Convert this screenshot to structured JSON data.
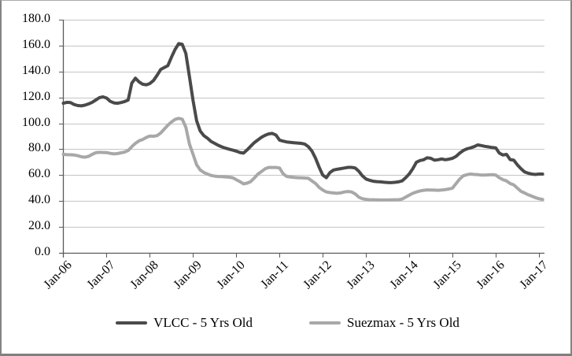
{
  "chart_data": {
    "type": "line",
    "title": "",
    "grid": "horizontal",
    "legend_position": "bottom",
    "frequency": "monthly",
    "x_range": "Jan-06 to Feb-17",
    "x_axis": {
      "tick_labels": [
        "Jan-06",
        "Jan-07",
        "Jan-08",
        "Jan-09",
        "Jan-10",
        "Jan-11",
        "Jan-12",
        "Jan-13",
        "Jan-14",
        "Jan-15",
        "Jan-16",
        "Jan-17"
      ]
    },
    "y_axis": {
      "min": 0,
      "max": 180,
      "tick_values": [
        0,
        20,
        40,
        60,
        80,
        100,
        120,
        140,
        160,
        180
      ],
      "tick_labels": [
        "0.0",
        "20.0",
        "40.0",
        "60.0",
        "80.0",
        "100.0",
        "120.0",
        "140.0",
        "160.0",
        "180.0"
      ]
    },
    "colors": {
      "vlcc_line": "#4a4a4a",
      "suezmax_line": "#a8a8a8",
      "gridline": "#c4c4c4",
      "axis": "#595959"
    },
    "series": [
      {
        "name": "VLCC - 5 Yrs Old",
        "color": "#4a4a4a",
        "values": [
          115.5,
          116.2,
          116.0,
          114.5,
          113.7,
          113.5,
          114.0,
          115.0,
          116.2,
          118.0,
          119.8,
          120.4,
          119.5,
          117.0,
          115.8,
          115.5,
          116.0,
          116.8,
          118.0,
          131.0,
          134.8,
          132.0,
          130.2,
          129.7,
          130.7,
          133.0,
          137.0,
          141.5,
          143.0,
          144.5,
          151.0,
          157.0,
          161.5,
          161.0,
          154.0,
          136.0,
          117.5,
          102.0,
          94.0,
          90.5,
          88.5,
          86.0,
          84.5,
          83.0,
          81.8,
          80.8,
          80.0,
          79.3,
          78.5,
          77.5,
          77.0,
          79.5,
          82.3,
          85.1,
          87.2,
          89.2,
          90.8,
          91.8,
          92.2,
          91.0,
          87.0,
          86.2,
          85.6,
          85.3,
          85.0,
          84.8,
          84.5,
          84.0,
          82.0,
          78.5,
          73.0,
          66.0,
          60.0,
          58.0,
          62.0,
          64.0,
          64.5,
          65.0,
          65.5,
          66.0,
          66.0,
          65.5,
          63.0,
          59.5,
          57.0,
          56.0,
          55.3,
          55.0,
          54.8,
          54.5,
          54.3,
          54.2,
          54.4,
          54.8,
          55.5,
          58.0,
          61.0,
          65.0,
          70.0,
          71.3,
          71.9,
          73.4,
          73.0,
          71.5,
          71.9,
          72.5,
          71.9,
          72.3,
          73.0,
          74.5,
          77.0,
          79.0,
          80.3,
          81.0,
          82.0,
          83.3,
          82.8,
          82.2,
          81.8,
          81.3,
          81.0,
          77.0,
          75.5,
          76.0,
          72.0,
          71.5,
          68.0,
          65.0,
          62.5,
          61.5,
          60.8,
          60.5,
          60.8,
          60.8
        ]
      },
      {
        "name": "Suezmax - 5 Yrs Old",
        "color": "#a8a8a8",
        "values": [
          76.0,
          75.8,
          75.7,
          75.5,
          75.0,
          74.2,
          73.8,
          74.5,
          76.0,
          77.3,
          77.6,
          77.5,
          77.4,
          76.8,
          76.4,
          76.6,
          77.2,
          77.8,
          79.0,
          82.0,
          84.5,
          86.5,
          87.5,
          89.0,
          90.2,
          90.0,
          90.5,
          92.5,
          95.5,
          98.5,
          101.0,
          103.0,
          103.8,
          103.2,
          97.0,
          84.0,
          76.0,
          68.0,
          64.0,
          62.0,
          60.8,
          59.8,
          59.2,
          58.9,
          58.8,
          58.6,
          58.4,
          58.0,
          56.5,
          55.0,
          53.3,
          53.8,
          55.0,
          57.8,
          60.8,
          62.8,
          64.9,
          65.9,
          65.9,
          65.9,
          65.5,
          61.0,
          59.0,
          58.5,
          58.2,
          58.0,
          57.9,
          57.8,
          57.5,
          55.5,
          53.5,
          50.5,
          48.5,
          47.0,
          46.5,
          46.2,
          46.0,
          46.3,
          47.0,
          47.4,
          47.0,
          45.5,
          43.0,
          41.8,
          41.3,
          41.0,
          41.0,
          40.9,
          40.8,
          40.8,
          40.8,
          40.9,
          41.0,
          41.0,
          41.5,
          43.0,
          44.5,
          46.0,
          47.0,
          47.8,
          48.3,
          48.6,
          48.5,
          48.4,
          48.3,
          48.5,
          48.8,
          49.3,
          50.0,
          53.5,
          57.0,
          59.5,
          60.3,
          60.8,
          60.5,
          60.3,
          60.0,
          60.0,
          60.2,
          60.3,
          60.0,
          58.0,
          56.5,
          55.5,
          53.5,
          52.5,
          50.0,
          47.5,
          46.2,
          44.8,
          43.8,
          42.6,
          41.8,
          41.2
        ]
      }
    ]
  }
}
